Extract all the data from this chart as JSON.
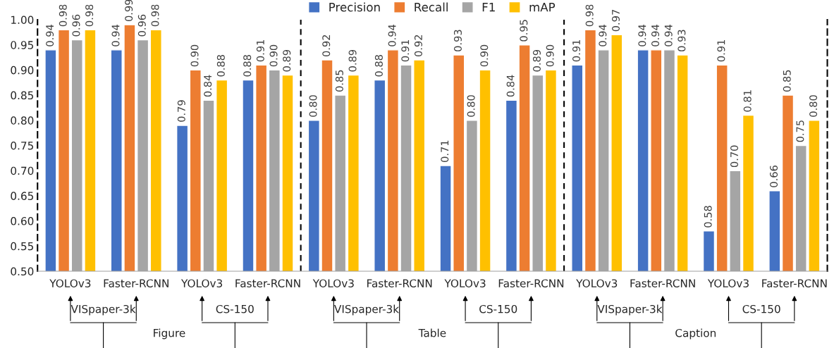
{
  "chart_data": {
    "type": "bar",
    "categories": [
      "YOLOv3",
      "Faster-RCNN",
      "YOLOv3",
      "Faster-RCNN",
      "YOLOv3",
      "Faster-RCNN",
      "YOLOv3",
      "Faster-RCNN",
      "YOLOv3",
      "Faster-RCNN",
      "YOLOv3",
      "Faster-RCNN"
    ],
    "annotations": [
      "VISpaper-3k",
      "CS-150",
      "Figure",
      "VISpaper-3k",
      "CS-150",
      "Table",
      "VISpaper-3k",
      "CS-150",
      "Caption"
    ],
    "ylim": [
      0.5,
      1.0
    ],
    "yticks": [
      {
        "value": 0.5,
        "label": "0.50"
      },
      {
        "value": 0.55,
        "label": "0.55"
      },
      {
        "value": 0.6,
        "label": "0.60"
      },
      {
        "value": 0.65,
        "label": "0.65"
      },
      {
        "value": 0.7,
        "label": "0.70"
      },
      {
        "value": 0.75,
        "label": "0.75"
      },
      {
        "value": 0.8,
        "label": "0.80"
      },
      {
        "value": 0.85,
        "label": "0.85"
      },
      {
        "value": 0.9,
        "label": "0.90"
      },
      {
        "value": 0.95,
        "label": "0.95"
      },
      {
        "value": 1.0,
        "label": "1.00"
      }
    ],
    "legend": "top",
    "grid": false,
    "series": [
      {
        "name": "Precision",
        "color": "#4472c4",
        "values": [
          0.94,
          0.94,
          0.79,
          0.88,
          0.8,
          0.88,
          0.71,
          0.84,
          0.91,
          0.94,
          0.58,
          0.66
        ],
        "value_labels": [
          "0.94",
          "0.94",
          "0.79",
          "0.88",
          "0.80",
          "0.88",
          "0.71",
          "0.84",
          "0.91",
          "0.94",
          "0.58",
          "0.66"
        ]
      },
      {
        "name": "Recall",
        "color": "#ed7d31",
        "values": [
          0.98,
          0.99,
          0.9,
          0.91,
          0.92,
          0.94,
          0.93,
          0.95,
          0.98,
          0.94,
          0.91,
          0.85
        ],
        "value_labels": [
          "0.98",
          "0.99",
          "0.90",
          "0.91",
          "0.92",
          "0.94",
          "0.93",
          "0.95",
          "0.98",
          "0.94",
          "0.91",
          "0.85"
        ]
      },
      {
        "name": "F1",
        "color": "#a5a5a5",
        "values": [
          0.96,
          0.96,
          0.84,
          0.9,
          0.85,
          0.91,
          0.8,
          0.89,
          0.94,
          0.94,
          0.7,
          0.75
        ],
        "value_labels": [
          "0.96",
          "0.96",
          "0.84",
          "0.90",
          "0.85",
          "0.91",
          "0.80",
          "0.89",
          "0.94",
          "0.94",
          "0.70",
          "0.75"
        ]
      },
      {
        "name": "mAP",
        "color": "#ffc000",
        "values": [
          0.98,
          0.98,
          0.88,
          0.89,
          0.89,
          0.92,
          0.9,
          0.9,
          0.97,
          0.93,
          0.81,
          0.8
        ],
        "value_labels": [
          "0.98",
          "0.98",
          "0.88",
          "0.89",
          "0.89",
          "0.92",
          "0.90",
          "0.90",
          "0.97",
          "0.93",
          "0.81",
          "0.80"
        ]
      }
    ]
  }
}
